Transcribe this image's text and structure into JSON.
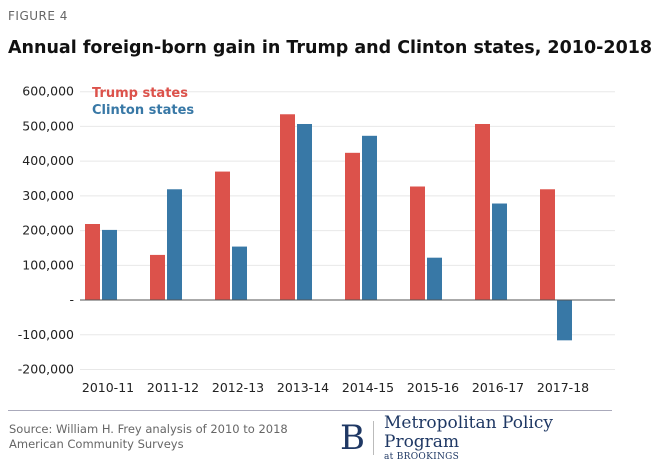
{
  "figure_label": "FIGURE 4",
  "source": "Source: William H. Frey analysis of 2010 to 2018 American Community Surveys",
  "logo": {
    "letter": "B",
    "program": "Metropolitan Policy Program",
    "sub": "at BROOKINGS"
  },
  "chart_data": {
    "type": "bar",
    "title": "Annual foreign-born gain in Trump and Clinton states, 2010-2018",
    "xlabel": "",
    "ylabel": "",
    "categories": [
      "2010-11",
      "2011-12",
      "2012-13",
      "2013-14",
      "2014-15",
      "2015-16",
      "2016-17",
      "2017-18"
    ],
    "series": [
      {
        "name": "Trump states",
        "color": "#dc524b",
        "values": [
          219000,
          130000,
          370000,
          535000,
          424000,
          327000,
          507000,
          319000
        ]
      },
      {
        "name": "Clinton states",
        "color": "#3878a6",
        "values": [
          202000,
          319000,
          154000,
          507000,
          473000,
          122000,
          278000,
          -116000
        ]
      }
    ],
    "ylim": [
      -200000,
      600000
    ],
    "yticks": [
      600000,
      500000,
      400000,
      300000,
      200000,
      100000,
      0,
      -100000,
      -200000
    ],
    "ytick_labels": [
      "600,000",
      "500,000",
      "400,000",
      "300,000",
      "200,000",
      "100,000",
      "-",
      "-100,000",
      "-200,000"
    ],
    "grid": true,
    "legend": "top-left"
  }
}
